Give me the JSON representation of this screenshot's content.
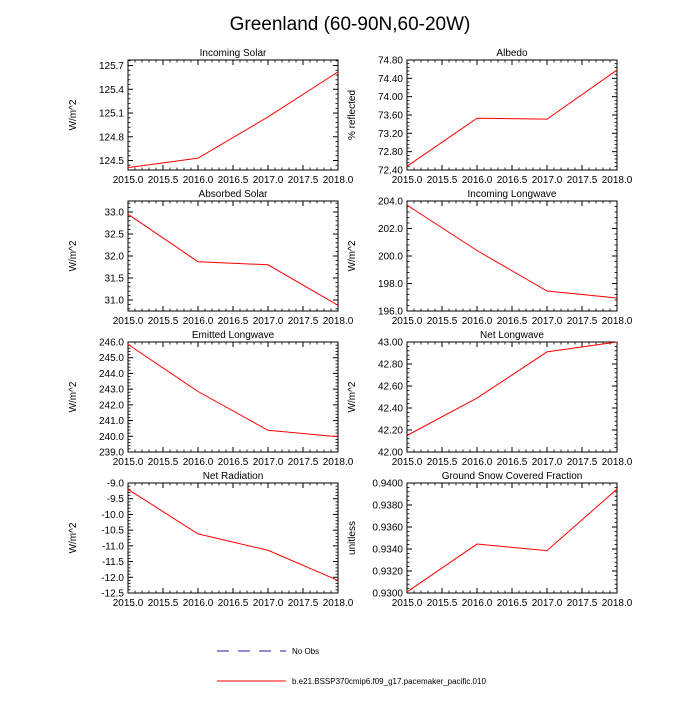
{
  "title": "Greenland (60-90N,60-20W)",
  "x_tick_labels": [
    "2015.0",
    "2015.5",
    "2016.0",
    "2016.5",
    "2017.0",
    "2017.5",
    "2018.0"
  ],
  "series_color": "#ff0000",
  "obs_color": "#1f1fa8",
  "legend": {
    "obs_label": "No Obs",
    "model_label": "b.e21.BSSP370cmip6.f09_g17.pacemaker_pacific.010"
  },
  "chart_data": [
    {
      "type": "line",
      "title": "Incoming Solar",
      "xlabel": "",
      "ylabel": "W/m^2",
      "xlim": [
        2015.0,
        2018.0
      ],
      "ylim": [
        124.38,
        125.77
      ],
      "yticks": [
        "124.5",
        "124.8",
        "125.1",
        "125.4",
        "125.7"
      ],
      "x": [
        2015.0,
        2016.0,
        2017.0,
        2018.0
      ],
      "values": [
        124.41,
        124.53,
        125.05,
        125.62
      ]
    },
    {
      "type": "line",
      "title": "Albedo",
      "xlabel": "",
      "ylabel": "% reflected",
      "xlim": [
        2015.0,
        2018.0
      ],
      "ylim": [
        72.4,
        74.8
      ],
      "yticks": [
        "72.40",
        "72.80",
        "73.20",
        "73.60",
        "74.00",
        "74.40",
        "74.80"
      ],
      "x": [
        2015.0,
        2016.0,
        2017.0,
        2018.0
      ],
      "values": [
        72.48,
        73.53,
        73.51,
        74.58
      ]
    },
    {
      "type": "line",
      "title": "Absorbed Solar",
      "xlabel": "",
      "ylabel": "W/m^2",
      "xlim": [
        2015.0,
        2018.0
      ],
      "ylim": [
        30.75,
        33.25
      ],
      "yticks": [
        "31.0",
        "31.5",
        "32.0",
        "32.5",
        "33.0"
      ],
      "x": [
        2015.0,
        2016.0,
        2017.0,
        2018.0
      ],
      "values": [
        32.95,
        31.87,
        31.8,
        30.88
      ]
    },
    {
      "type": "line",
      "title": "Incoming Longwave",
      "xlabel": "",
      "ylabel": "W/m^2",
      "xlim": [
        2015.0,
        2018.0
      ],
      "ylim": [
        196.0,
        204.0
      ],
      "yticks": [
        "196.0",
        "198.0",
        "200.0",
        "202.0",
        "204.0"
      ],
      "x": [
        2015.0,
        2016.0,
        2017.0,
        2018.0
      ],
      "values": [
        203.7,
        200.4,
        197.45,
        196.95
      ]
    },
    {
      "type": "line",
      "title": "Emitted Longwave",
      "xlabel": "",
      "ylabel": "W/m^2",
      "xlim": [
        2015.0,
        2018.0
      ],
      "ylim": [
        239.0,
        246.0
      ],
      "yticks": [
        "239.0",
        "240.0",
        "241.0",
        "242.0",
        "243.0",
        "244.0",
        "245.0",
        "246.0"
      ],
      "x": [
        2015.0,
        2016.0,
        2017.0,
        2018.0
      ],
      "values": [
        245.85,
        242.85,
        240.38,
        239.97
      ]
    },
    {
      "type": "line",
      "title": "Net Longwave",
      "xlabel": "",
      "ylabel": "W/m^2",
      "xlim": [
        2015.0,
        2018.0
      ],
      "ylim": [
        42.0,
        43.0
      ],
      "yticks": [
        "42.00",
        "42.20",
        "42.40",
        "42.60",
        "42.80",
        "43.00"
      ],
      "x": [
        2015.0,
        2016.0,
        2017.0,
        2018.0
      ],
      "values": [
        42.15,
        42.49,
        42.91,
        43.0
      ]
    },
    {
      "type": "line",
      "title": "Net Radiation",
      "xlabel": "",
      "ylabel": "W/m^2",
      "xlim": [
        2015.0,
        2018.0
      ],
      "ylim": [
        -12.5,
        -9.0
      ],
      "yticks": [
        "-12.5",
        "-12.0",
        "-11.5",
        "-11.0",
        "-10.5",
        "-10.0",
        "-9.5",
        "-9.0"
      ],
      "x": [
        2015.0,
        2016.0,
        2017.0,
        2018.0
      ],
      "values": [
        -9.2,
        -10.62,
        -11.14,
        -12.1
      ]
    },
    {
      "type": "line",
      "title": "Ground Snow Covered Fraction",
      "xlabel": "",
      "ylabel": "unitless",
      "xlim": [
        2015.0,
        2018.0
      ],
      "ylim": [
        0.93,
        0.94
      ],
      "yticks": [
        "0.9300",
        "0.9320",
        "0.9340",
        "0.9360",
        "0.9380",
        "0.9400"
      ],
      "x": [
        2015.0,
        2016.0,
        2017.0,
        2018.0
      ],
      "values": [
        0.9301,
        0.93445,
        0.93385,
        0.93945
      ]
    }
  ]
}
